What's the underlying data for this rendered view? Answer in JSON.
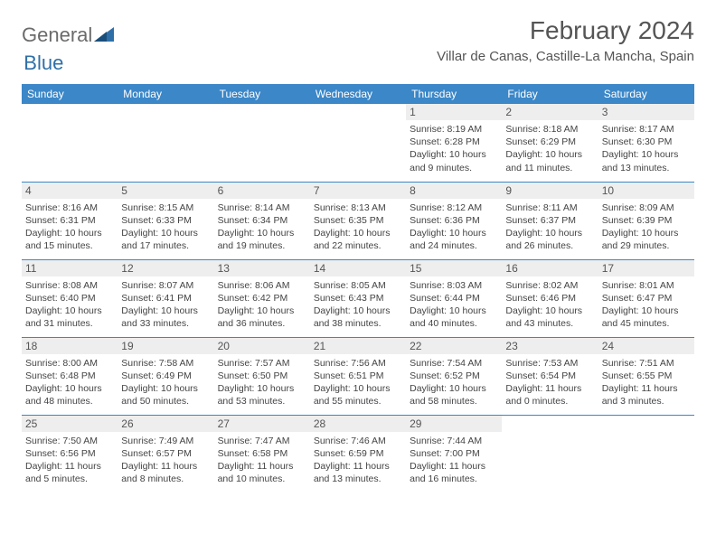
{
  "logo": {
    "text1": "General",
    "text2": "Blue"
  },
  "title": "February 2024",
  "location": "Villar de Canas, Castille-La Mancha, Spain",
  "colors": {
    "header_bg": "#3b87c8",
    "header_fg": "#ffffff",
    "daynum_bg": "#eeeeee",
    "border": "#3b87c8",
    "text": "#444444",
    "logo_gray": "#6b6b6b",
    "logo_blue": "#2f6fa8"
  },
  "dayHeaders": [
    "Sunday",
    "Monday",
    "Tuesday",
    "Wednesday",
    "Thursday",
    "Friday",
    "Saturday"
  ],
  "weeks": [
    [
      null,
      null,
      null,
      null,
      {
        "n": "1",
        "sr": "Sunrise: 8:19 AM",
        "ss": "Sunset: 6:28 PM",
        "dl1": "Daylight: 10 hours",
        "dl2": "and 9 minutes."
      },
      {
        "n": "2",
        "sr": "Sunrise: 8:18 AM",
        "ss": "Sunset: 6:29 PM",
        "dl1": "Daylight: 10 hours",
        "dl2": "and 11 minutes."
      },
      {
        "n": "3",
        "sr": "Sunrise: 8:17 AM",
        "ss": "Sunset: 6:30 PM",
        "dl1": "Daylight: 10 hours",
        "dl2": "and 13 minutes."
      }
    ],
    [
      {
        "n": "4",
        "sr": "Sunrise: 8:16 AM",
        "ss": "Sunset: 6:31 PM",
        "dl1": "Daylight: 10 hours",
        "dl2": "and 15 minutes."
      },
      {
        "n": "5",
        "sr": "Sunrise: 8:15 AM",
        "ss": "Sunset: 6:33 PM",
        "dl1": "Daylight: 10 hours",
        "dl2": "and 17 minutes."
      },
      {
        "n": "6",
        "sr": "Sunrise: 8:14 AM",
        "ss": "Sunset: 6:34 PM",
        "dl1": "Daylight: 10 hours",
        "dl2": "and 19 minutes."
      },
      {
        "n": "7",
        "sr": "Sunrise: 8:13 AM",
        "ss": "Sunset: 6:35 PM",
        "dl1": "Daylight: 10 hours",
        "dl2": "and 22 minutes."
      },
      {
        "n": "8",
        "sr": "Sunrise: 8:12 AM",
        "ss": "Sunset: 6:36 PM",
        "dl1": "Daylight: 10 hours",
        "dl2": "and 24 minutes."
      },
      {
        "n": "9",
        "sr": "Sunrise: 8:11 AM",
        "ss": "Sunset: 6:37 PM",
        "dl1": "Daylight: 10 hours",
        "dl2": "and 26 minutes."
      },
      {
        "n": "10",
        "sr": "Sunrise: 8:09 AM",
        "ss": "Sunset: 6:39 PM",
        "dl1": "Daylight: 10 hours",
        "dl2": "and 29 minutes."
      }
    ],
    [
      {
        "n": "11",
        "sr": "Sunrise: 8:08 AM",
        "ss": "Sunset: 6:40 PM",
        "dl1": "Daylight: 10 hours",
        "dl2": "and 31 minutes."
      },
      {
        "n": "12",
        "sr": "Sunrise: 8:07 AM",
        "ss": "Sunset: 6:41 PM",
        "dl1": "Daylight: 10 hours",
        "dl2": "and 33 minutes."
      },
      {
        "n": "13",
        "sr": "Sunrise: 8:06 AM",
        "ss": "Sunset: 6:42 PM",
        "dl1": "Daylight: 10 hours",
        "dl2": "and 36 minutes."
      },
      {
        "n": "14",
        "sr": "Sunrise: 8:05 AM",
        "ss": "Sunset: 6:43 PM",
        "dl1": "Daylight: 10 hours",
        "dl2": "and 38 minutes."
      },
      {
        "n": "15",
        "sr": "Sunrise: 8:03 AM",
        "ss": "Sunset: 6:44 PM",
        "dl1": "Daylight: 10 hours",
        "dl2": "and 40 minutes."
      },
      {
        "n": "16",
        "sr": "Sunrise: 8:02 AM",
        "ss": "Sunset: 6:46 PM",
        "dl1": "Daylight: 10 hours",
        "dl2": "and 43 minutes."
      },
      {
        "n": "17",
        "sr": "Sunrise: 8:01 AM",
        "ss": "Sunset: 6:47 PM",
        "dl1": "Daylight: 10 hours",
        "dl2": "and 45 minutes."
      }
    ],
    [
      {
        "n": "18",
        "sr": "Sunrise: 8:00 AM",
        "ss": "Sunset: 6:48 PM",
        "dl1": "Daylight: 10 hours",
        "dl2": "and 48 minutes."
      },
      {
        "n": "19",
        "sr": "Sunrise: 7:58 AM",
        "ss": "Sunset: 6:49 PM",
        "dl1": "Daylight: 10 hours",
        "dl2": "and 50 minutes."
      },
      {
        "n": "20",
        "sr": "Sunrise: 7:57 AM",
        "ss": "Sunset: 6:50 PM",
        "dl1": "Daylight: 10 hours",
        "dl2": "and 53 minutes."
      },
      {
        "n": "21",
        "sr": "Sunrise: 7:56 AM",
        "ss": "Sunset: 6:51 PM",
        "dl1": "Daylight: 10 hours",
        "dl2": "and 55 minutes."
      },
      {
        "n": "22",
        "sr": "Sunrise: 7:54 AM",
        "ss": "Sunset: 6:52 PM",
        "dl1": "Daylight: 10 hours",
        "dl2": "and 58 minutes."
      },
      {
        "n": "23",
        "sr": "Sunrise: 7:53 AM",
        "ss": "Sunset: 6:54 PM",
        "dl1": "Daylight: 11 hours",
        "dl2": "and 0 minutes."
      },
      {
        "n": "24",
        "sr": "Sunrise: 7:51 AM",
        "ss": "Sunset: 6:55 PM",
        "dl1": "Daylight: 11 hours",
        "dl2": "and 3 minutes."
      }
    ],
    [
      {
        "n": "25",
        "sr": "Sunrise: 7:50 AM",
        "ss": "Sunset: 6:56 PM",
        "dl1": "Daylight: 11 hours",
        "dl2": "and 5 minutes."
      },
      {
        "n": "26",
        "sr": "Sunrise: 7:49 AM",
        "ss": "Sunset: 6:57 PM",
        "dl1": "Daylight: 11 hours",
        "dl2": "and 8 minutes."
      },
      {
        "n": "27",
        "sr": "Sunrise: 7:47 AM",
        "ss": "Sunset: 6:58 PM",
        "dl1": "Daylight: 11 hours",
        "dl2": "and 10 minutes."
      },
      {
        "n": "28",
        "sr": "Sunrise: 7:46 AM",
        "ss": "Sunset: 6:59 PM",
        "dl1": "Daylight: 11 hours",
        "dl2": "and 13 minutes."
      },
      {
        "n": "29",
        "sr": "Sunrise: 7:44 AM",
        "ss": "Sunset: 7:00 PM",
        "dl1": "Daylight: 11 hours",
        "dl2": "and 16 minutes."
      },
      null,
      null
    ]
  ]
}
